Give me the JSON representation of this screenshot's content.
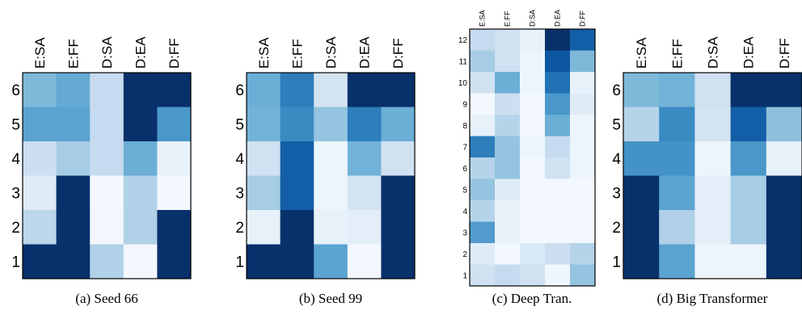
{
  "chart_data": [
    {
      "type": "heatmap",
      "caption": "(a) Seed 66",
      "x": [
        "E:SA",
        "E:FF",
        "D:SA",
        "D:EA",
        "D:FF"
      ],
      "y": [
        "6",
        "5",
        "4",
        "3",
        "2",
        "1"
      ],
      "values": [
        [
          0.45,
          0.52,
          0.25,
          1.0,
          1.0
        ],
        [
          0.55,
          0.55,
          0.25,
          1.0,
          0.6
        ],
        [
          0.22,
          0.35,
          0.25,
          0.5,
          0.07
        ],
        [
          0.12,
          1.0,
          0.02,
          0.32,
          0.02
        ],
        [
          0.28,
          1.0,
          0.03,
          0.32,
          1.0
        ],
        [
          1.0,
          1.0,
          0.32,
          0.02,
          1.0
        ]
      ]
    },
    {
      "type": "heatmap",
      "caption": "(b) Seed 99",
      "x": [
        "E:SA",
        "E:FF",
        "D:SA",
        "D:EA",
        "D:FF"
      ],
      "y": [
        "6",
        "5",
        "4",
        "3",
        "2",
        "1"
      ],
      "values": [
        [
          0.5,
          0.7,
          0.18,
          1.0,
          1.0
        ],
        [
          0.48,
          0.65,
          0.4,
          0.7,
          0.5
        ],
        [
          0.2,
          0.82,
          0.05,
          0.48,
          0.2
        ],
        [
          0.35,
          0.82,
          0.05,
          0.18,
          1.0
        ],
        [
          0.08,
          1.0,
          0.08,
          0.1,
          1.0
        ],
        [
          1.0,
          1.0,
          0.55,
          0.02,
          1.0
        ]
      ]
    },
    {
      "type": "heatmap",
      "caption": "(c) Deep Tran.",
      "x": [
        "E:SA",
        "E:FF",
        "D:SA",
        "D:EA",
        "D:FF"
      ],
      "y": [
        "12",
        "11",
        "10",
        "9",
        "8",
        "7",
        "6",
        "5",
        "4",
        "3",
        "2",
        "1"
      ],
      "values": [
        [
          0.25,
          0.2,
          0.08,
          1.0,
          0.82
        ],
        [
          0.35,
          0.2,
          0.05,
          0.85,
          0.45
        ],
        [
          0.2,
          0.5,
          0.05,
          0.75,
          0.08
        ],
        [
          0.02,
          0.22,
          0.03,
          0.6,
          0.12
        ],
        [
          0.08,
          0.3,
          0.03,
          0.5,
          0.05
        ],
        [
          0.7,
          0.4,
          0.05,
          0.25,
          0.05
        ],
        [
          0.3,
          0.4,
          0.03,
          0.2,
          0.05
        ],
        [
          0.4,
          0.12,
          0.02,
          0.02,
          0.02
        ],
        [
          0.3,
          0.08,
          0.02,
          0.02,
          0.02
        ],
        [
          0.58,
          0.07,
          0.02,
          0.02,
          0.02
        ],
        [
          0.12,
          0.02,
          0.15,
          0.22,
          0.3
        ],
        [
          0.2,
          0.25,
          0.2,
          0.04,
          0.4
        ]
      ]
    },
    {
      "type": "heatmap",
      "caption": "(d) Big Transformer",
      "x": [
        "E:SA",
        "E:FF",
        "D:SA",
        "D:EA",
        "D:FF"
      ],
      "y": [
        "6",
        "5",
        "4",
        "3",
        "2",
        "1"
      ],
      "values": [
        [
          0.45,
          0.48,
          0.2,
          1.0,
          1.0
        ],
        [
          0.3,
          0.65,
          0.18,
          0.82,
          0.42
        ],
        [
          0.62,
          0.62,
          0.05,
          0.6,
          0.08
        ],
        [
          1.0,
          0.55,
          0.1,
          0.35,
          1.0
        ],
        [
          1.0,
          0.32,
          0.1,
          0.35,
          1.0
        ],
        [
          1.0,
          0.55,
          0.05,
          0.05,
          1.0
        ]
      ]
    }
  ]
}
